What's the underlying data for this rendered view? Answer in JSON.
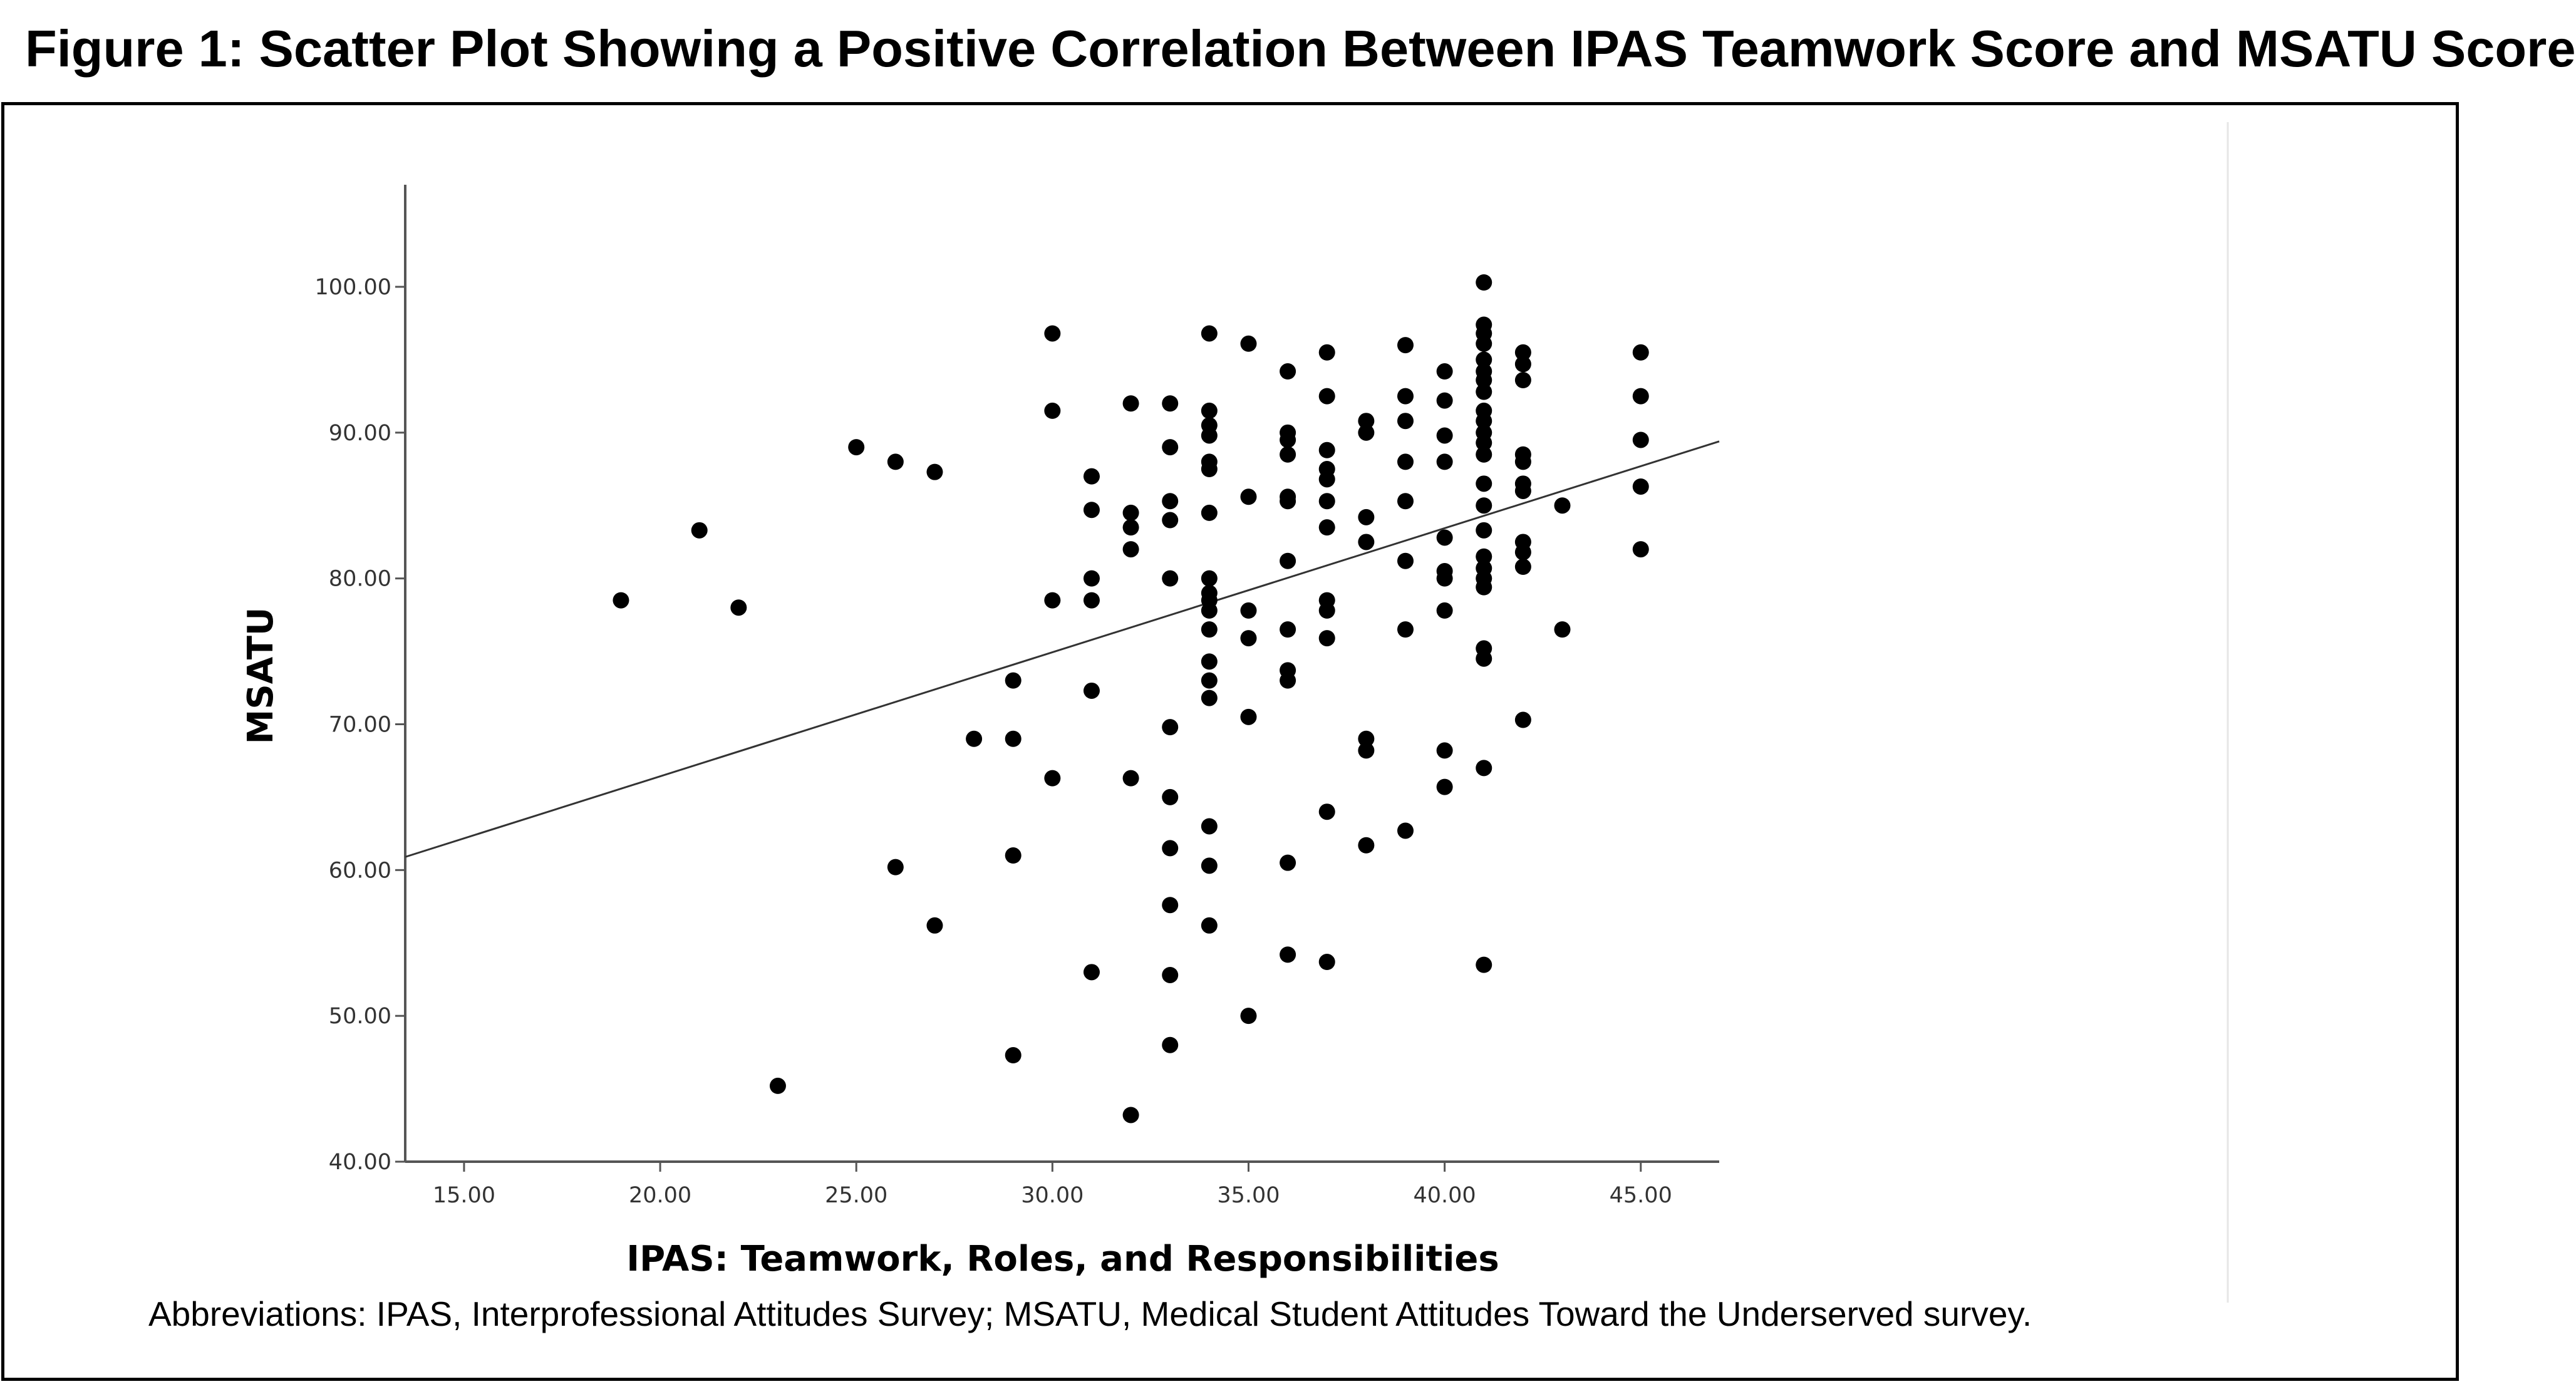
{
  "title": "Figure 1: Scatter Plot Showing a Positive Correlation Between IPAS Teamwork Score and MSATU Score",
  "footnote": "Abbreviations: IPAS, Interprofessional Attitudes Survey; MSATU,  Medical Student Attitudes Toward the Underserved survey.",
  "chart_data": {
    "type": "scatter",
    "title": "",
    "xlabel": "IPAS: Teamwork, Roles, and Responsibilities",
    "ylabel": "MSATU",
    "xlim": [
      13.5,
      47.0
    ],
    "ylim": [
      40.0,
      107.0
    ],
    "x_ticks": [
      15,
      20,
      25,
      30,
      35,
      40,
      45
    ],
    "y_ticks": [
      40,
      50,
      60,
      70,
      80,
      90,
      100
    ],
    "x_tick_labels": [
      "15.00",
      "20.00",
      "25.00",
      "30.00",
      "35.00",
      "40.00",
      "45.00"
    ],
    "y_tick_labels": [
      "40.00",
      "50.00",
      "60.00",
      "70.00",
      "80.00",
      "90.00",
      "100.00"
    ],
    "grid": false,
    "legend": "none",
    "point_color": "#000000",
    "fit_line": {
      "x": [
        13.5,
        47.0
      ],
      "y": [
        60.9,
        89.4
      ],
      "color": "#333333"
    },
    "points": [
      [
        19,
        78.5
      ],
      [
        21,
        83.3
      ],
      [
        22,
        78.0
      ],
      [
        23,
        45.2
      ],
      [
        25,
        89.0
      ],
      [
        26,
        88.0
      ],
      [
        26,
        60.2
      ],
      [
        27,
        87.3
      ],
      [
        27,
        56.2
      ],
      [
        28,
        69.0
      ],
      [
        29,
        73.0
      ],
      [
        29,
        69.0
      ],
      [
        29,
        61.0
      ],
      [
        29,
        47.3
      ],
      [
        30,
        96.8
      ],
      [
        30,
        91.5
      ],
      [
        30,
        78.5
      ],
      [
        30,
        66.3
      ],
      [
        31,
        87.0
      ],
      [
        31,
        84.7
      ],
      [
        31,
        80.0
      ],
      [
        31,
        78.5
      ],
      [
        31,
        72.3
      ],
      [
        31,
        53.0
      ],
      [
        32,
        92.0
      ],
      [
        32,
        84.5
      ],
      [
        32,
        83.5
      ],
      [
        32,
        82.0
      ],
      [
        32,
        66.3
      ],
      [
        32,
        43.2
      ],
      [
        33,
        92.0
      ],
      [
        33,
        89.0
      ],
      [
        33,
        85.3
      ],
      [
        33,
        84.0
      ],
      [
        33,
        80.0
      ],
      [
        33,
        69.8
      ],
      [
        33,
        65.0
      ],
      [
        33,
        61.5
      ],
      [
        33,
        57.6
      ],
      [
        33,
        52.8
      ],
      [
        33,
        48.0
      ],
      [
        34,
        96.8
      ],
      [
        34,
        91.5
      ],
      [
        34,
        90.5
      ],
      [
        34,
        89.8
      ],
      [
        34,
        88.0
      ],
      [
        34,
        87.5
      ],
      [
        34,
        84.5
      ],
      [
        34,
        80.0
      ],
      [
        34,
        79.0
      ],
      [
        34,
        78.5
      ],
      [
        34,
        77.8
      ],
      [
        34,
        76.5
      ],
      [
        34,
        74.3
      ],
      [
        34,
        73.0
      ],
      [
        34,
        71.8
      ],
      [
        34,
        63.0
      ],
      [
        34,
        60.3
      ],
      [
        34,
        56.2
      ],
      [
        35,
        96.1
      ],
      [
        35,
        85.6
      ],
      [
        35,
        77.8
      ],
      [
        35,
        75.9
      ],
      [
        35,
        70.5
      ],
      [
        35,
        50.0
      ],
      [
        36,
        94.2
      ],
      [
        36,
        90.0
      ],
      [
        36,
        89.5
      ],
      [
        36,
        88.5
      ],
      [
        36,
        85.6
      ],
      [
        36,
        85.3
      ],
      [
        36,
        81.2
      ],
      [
        36,
        76.5
      ],
      [
        36,
        73.7
      ],
      [
        36,
        73.0
      ],
      [
        36,
        60.5
      ],
      [
        36,
        54.2
      ],
      [
        37,
        95.5
      ],
      [
        37,
        92.5
      ],
      [
        37,
        88.8
      ],
      [
        37,
        87.5
      ],
      [
        37,
        86.8
      ],
      [
        37,
        85.3
      ],
      [
        37,
        83.5
      ],
      [
        37,
        78.5
      ],
      [
        37,
        77.8
      ],
      [
        37,
        75.9
      ],
      [
        37,
        64.0
      ],
      [
        37,
        53.7
      ],
      [
        38,
        90.8
      ],
      [
        38,
        90.0
      ],
      [
        38,
        84.2
      ],
      [
        38,
        82.5
      ],
      [
        38,
        69.0
      ],
      [
        38,
        68.2
      ],
      [
        38,
        61.7
      ],
      [
        39,
        96.0
      ],
      [
        39,
        92.5
      ],
      [
        39,
        90.8
      ],
      [
        39,
        88.0
      ],
      [
        39,
        85.3
      ],
      [
        39,
        81.2
      ],
      [
        39,
        76.5
      ],
      [
        39,
        62.7
      ],
      [
        40,
        94.2
      ],
      [
        40,
        92.2
      ],
      [
        40,
        89.8
      ],
      [
        40,
        88.0
      ],
      [
        40,
        82.8
      ],
      [
        40,
        80.5
      ],
      [
        40,
        80.0
      ],
      [
        40,
        77.8
      ],
      [
        40,
        68.2
      ],
      [
        40,
        65.7
      ],
      [
        41,
        100.3
      ],
      [
        41,
        97.4
      ],
      [
        41,
        96.8
      ],
      [
        41,
        96.1
      ],
      [
        41,
        95.0
      ],
      [
        41,
        94.2
      ],
      [
        41,
        93.6
      ],
      [
        41,
        92.8
      ],
      [
        41,
        91.5
      ],
      [
        41,
        90.8
      ],
      [
        41,
        90.0
      ],
      [
        41,
        89.3
      ],
      [
        41,
        88.5
      ],
      [
        41,
        86.5
      ],
      [
        41,
        85.0
      ],
      [
        41,
        83.3
      ],
      [
        41,
        81.5
      ],
      [
        41,
        80.7
      ],
      [
        41,
        80.0
      ],
      [
        41,
        79.4
      ],
      [
        41,
        75.2
      ],
      [
        41,
        74.5
      ],
      [
        41,
        67.0
      ],
      [
        41,
        53.5
      ],
      [
        42,
        95.5
      ],
      [
        42,
        94.7
      ],
      [
        42,
        93.6
      ],
      [
        42,
        88.5
      ],
      [
        42,
        88.0
      ],
      [
        42,
        86.5
      ],
      [
        42,
        86.0
      ],
      [
        42,
        82.5
      ],
      [
        42,
        81.8
      ],
      [
        42,
        80.8
      ],
      [
        42,
        70.3
      ],
      [
        43,
        85.0
      ],
      [
        43,
        76.5
      ],
      [
        45,
        95.5
      ],
      [
        45,
        92.5
      ],
      [
        45,
        89.5
      ],
      [
        45,
        86.3
      ],
      [
        45,
        82.0
      ]
    ]
  }
}
